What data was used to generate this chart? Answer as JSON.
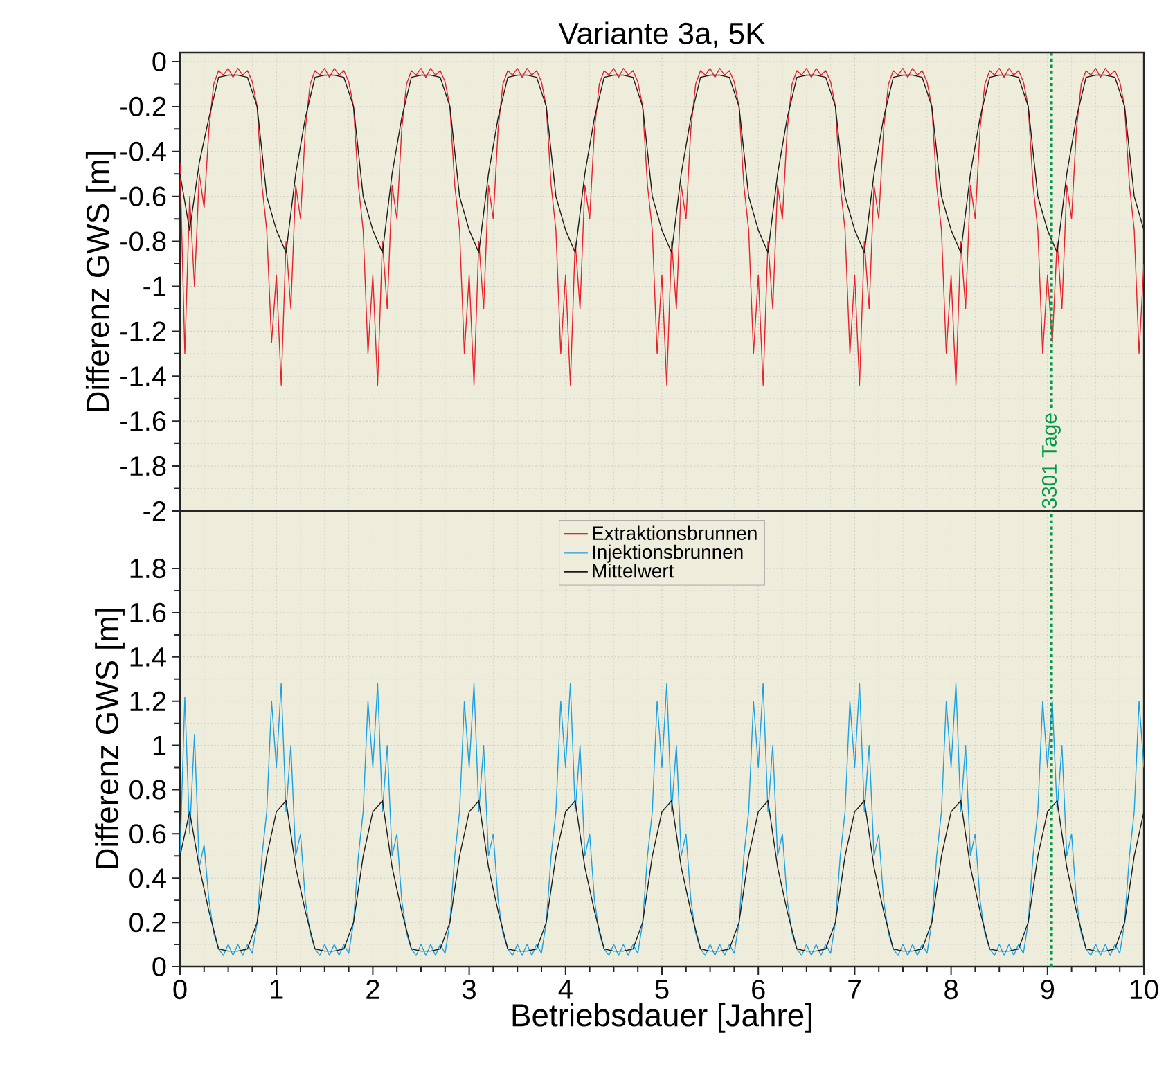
{
  "chart_data": [
    {
      "type": "line",
      "title": "Variante 3a, 5K",
      "ylabel": "Differenz GWS [m]",
      "tick_labels": "y",
      "grid": true,
      "xlim": [
        0,
        10
      ],
      "xticks": [
        0,
        1,
        2,
        3,
        4,
        5,
        6,
        7,
        8,
        9,
        10
      ],
      "ylim": [
        -2,
        0.04
      ],
      "yticks": [
        0,
        -0.2,
        -0.4,
        -0.6,
        -0.8,
        -1,
        -1.2,
        -1.4,
        -1.6,
        -1.8,
        -2
      ],
      "x": [
        0,
        0.05,
        0.1,
        0.15,
        0.2,
        0.25,
        0.3,
        0.35,
        0.4,
        0.45,
        0.5,
        0.55,
        0.6,
        0.65,
        0.7,
        0.75,
        0.8,
        0.85,
        0.9,
        0.95,
        1,
        1.05,
        1.1,
        1.15,
        1.2,
        1.25,
        1.3,
        1.35,
        1.4,
        1.45,
        1.5,
        1.55,
        1.6,
        1.65,
        1.7,
        1.75,
        1.8,
        1.85,
        1.9,
        1.95,
        2,
        2.05,
        2.1,
        2.15,
        2.2,
        2.25,
        2.3,
        2.35,
        2.4,
        2.45,
        2.5,
        2.55,
        2.6,
        2.65,
        2.7,
        2.75,
        2.8,
        2.85,
        2.9,
        2.95,
        3,
        3.05,
        3.1,
        3.15,
        3.2,
        3.25,
        3.3,
        3.35,
        3.4,
        3.45,
        3.5,
        3.55,
        3.6,
        3.65,
        3.7,
        3.75,
        3.8,
        3.85,
        3.9,
        3.95,
        4,
        4.05,
        4.1,
        4.15,
        4.2,
        4.25,
        4.3,
        4.35,
        4.4,
        4.45,
        4.5,
        4.55,
        4.6,
        4.65,
        4.7,
        4.75,
        4.8,
        4.85,
        4.9,
        4.95,
        5,
        5.05,
        5.1,
        5.15,
        5.2,
        5.25,
        5.3,
        5.35,
        5.4,
        5.45,
        5.5,
        5.55,
        5.6,
        5.65,
        5.7,
        5.75,
        5.8,
        5.85,
        5.9,
        5.95,
        6,
        6.05,
        6.1,
        6.15,
        6.2,
        6.25,
        6.3,
        6.35,
        6.4,
        6.45,
        6.5,
        6.55,
        6.6,
        6.65,
        6.7,
        6.75,
        6.8,
        6.85,
        6.9,
        6.95,
        7,
        7.05,
        7.1,
        7.15,
        7.2,
        7.25,
        7.3,
        7.35,
        7.4,
        7.45,
        7.5,
        7.55,
        7.6,
        7.65,
        7.7,
        7.75,
        7.8,
        7.85,
        7.9,
        7.95,
        8,
        8.05,
        8.1,
        8.15,
        8.2,
        8.25,
        8.3,
        8.35,
        8.4,
        8.45,
        8.5,
        8.55,
        8.6,
        8.65,
        8.7,
        8.75,
        8.8,
        8.85,
        8.9,
        8.95,
        9,
        9.05,
        9.1,
        9.15,
        9.2,
        9.25,
        9.3,
        9.35,
        9.4,
        9.45,
        9.5,
        9.55,
        9.6,
        9.65,
        9.7,
        9.75,
        9.8,
        9.85,
        9.9,
        9.95,
        10
      ],
      "series": [
        {
          "name": "Extraktionsbrunnen",
          "color": "#e8202a",
          "values": [
            -0.45,
            -1.3,
            -0.6,
            -1.0,
            -0.5,
            -0.65,
            -0.3,
            -0.1,
            -0.04,
            -0.06,
            -0.03,
            -0.07,
            -0.03,
            -0.06,
            -0.04,
            -0.09,
            -0.2,
            -0.55,
            -0.75,
            -1.25,
            -0.95,
            -1.44,
            -0.8,
            -1.1,
            -0.55,
            -0.7,
            -0.3,
            -0.1,
            -0.04,
            -0.06,
            -0.03,
            -0.07,
            -0.03,
            -0.06,
            -0.04,
            -0.09,
            -0.2,
            -0.55,
            -0.75,
            -1.3,
            -0.95,
            -1.44,
            -0.8,
            -1.1,
            -0.55,
            -0.7,
            -0.3,
            -0.1,
            -0.04,
            -0.06,
            -0.03,
            -0.07,
            -0.03,
            -0.06,
            -0.04,
            -0.09,
            -0.2,
            -0.55,
            -0.75,
            -1.3,
            -0.95,
            -1.44,
            -0.8,
            -1.1,
            -0.55,
            -0.7,
            -0.3,
            -0.1,
            -0.04,
            -0.06,
            -0.03,
            -0.07,
            -0.03,
            -0.06,
            -0.04,
            -0.09,
            -0.2,
            -0.55,
            -0.75,
            -1.3,
            -0.95,
            -1.44,
            -0.8,
            -1.1,
            -0.55,
            -0.7,
            -0.3,
            -0.1,
            -0.04,
            -0.06,
            -0.03,
            -0.07,
            -0.03,
            -0.06,
            -0.04,
            -0.09,
            -0.2,
            -0.55,
            -0.75,
            -1.3,
            -0.95,
            -1.44,
            -0.8,
            -1.1,
            -0.55,
            -0.7,
            -0.3,
            -0.1,
            -0.04,
            -0.06,
            -0.03,
            -0.07,
            -0.03,
            -0.06,
            -0.04,
            -0.09,
            -0.2,
            -0.55,
            -0.75,
            -1.3,
            -0.95,
            -1.44,
            -0.8,
            -1.1,
            -0.55,
            -0.7,
            -0.3,
            -0.1,
            -0.04,
            -0.06,
            -0.03,
            -0.07,
            -0.03,
            -0.06,
            -0.04,
            -0.09,
            -0.2,
            -0.55,
            -0.75,
            -1.3,
            -0.95,
            -1.44,
            -0.8,
            -1.1,
            -0.55,
            -0.7,
            -0.3,
            -0.1,
            -0.04,
            -0.06,
            -0.03,
            -0.07,
            -0.03,
            -0.06,
            -0.04,
            -0.09,
            -0.2,
            -0.55,
            -0.75,
            -1.3,
            -0.95,
            -1.44,
            -0.8,
            -1.1,
            -0.55,
            -0.7,
            -0.3,
            -0.1,
            -0.04,
            -0.06,
            -0.03,
            -0.07,
            -0.03,
            -0.06,
            -0.04,
            -0.09,
            -0.2,
            -0.55,
            -0.75,
            -1.3,
            -0.95,
            -1.25,
            -0.8,
            -1.1,
            -0.55,
            -0.7,
            -0.3,
            -0.1,
            -0.04,
            -0.06,
            -0.03,
            -0.07,
            -0.03,
            -0.06,
            -0.04,
            -0.09,
            -0.2,
            -0.55,
            -0.75,
            -1.3,
            -0.9
          ]
        },
        {
          "name": "Mittelwert",
          "color": "#1a1a1a",
          "x": [
            0,
            0.1,
            0.2,
            0.3,
            0.4,
            0.5,
            0.6,
            0.7,
            0.8,
            0.9,
            1,
            1.1,
            1.2,
            1.3,
            1.4,
            1.5,
            1.6,
            1.7,
            1.8,
            1.9,
            2,
            2.1,
            2.2,
            2.3,
            2.4,
            2.5,
            2.6,
            2.7,
            2.8,
            2.9,
            3,
            3.1,
            3.2,
            3.3,
            3.4,
            3.5,
            3.6,
            3.7,
            3.8,
            3.9,
            4,
            4.1,
            4.2,
            4.3,
            4.4,
            4.5,
            4.6,
            4.7,
            4.8,
            4.9,
            5,
            5.1,
            5.2,
            5.3,
            5.4,
            5.5,
            5.6,
            5.7,
            5.8,
            5.9,
            6,
            6.1,
            6.2,
            6.3,
            6.4,
            6.5,
            6.6,
            6.7,
            6.8,
            6.9,
            7,
            7.1,
            7.2,
            7.3,
            7.4,
            7.5,
            7.6,
            7.7,
            7.8,
            7.9,
            8,
            8.1,
            8.2,
            8.3,
            8.4,
            8.5,
            8.6,
            8.7,
            8.8,
            8.9,
            9,
            9.1,
            9.2,
            9.3,
            9.4,
            9.5,
            9.6,
            9.7,
            9.8,
            9.9,
            10
          ],
          "values": [
            -0.5,
            -0.75,
            -0.45,
            -0.25,
            -0.07,
            -0.06,
            -0.06,
            -0.07,
            -0.2,
            -0.6,
            -0.75,
            -0.85,
            -0.5,
            -0.25,
            -0.07,
            -0.06,
            -0.06,
            -0.07,
            -0.2,
            -0.6,
            -0.75,
            -0.85,
            -0.5,
            -0.25,
            -0.07,
            -0.06,
            -0.06,
            -0.07,
            -0.2,
            -0.6,
            -0.75,
            -0.85,
            -0.5,
            -0.25,
            -0.07,
            -0.06,
            -0.06,
            -0.07,
            -0.2,
            -0.6,
            -0.75,
            -0.85,
            -0.5,
            -0.25,
            -0.07,
            -0.06,
            -0.06,
            -0.07,
            -0.2,
            -0.6,
            -0.75,
            -0.85,
            -0.5,
            -0.25,
            -0.07,
            -0.06,
            -0.06,
            -0.07,
            -0.2,
            -0.6,
            -0.75,
            -0.85,
            -0.5,
            -0.25,
            -0.07,
            -0.06,
            -0.06,
            -0.07,
            -0.2,
            -0.6,
            -0.75,
            -0.85,
            -0.5,
            -0.25,
            -0.07,
            -0.06,
            -0.06,
            -0.07,
            -0.2,
            -0.6,
            -0.75,
            -0.85,
            -0.5,
            -0.25,
            -0.07,
            -0.06,
            -0.06,
            -0.07,
            -0.2,
            -0.6,
            -0.75,
            -0.85,
            -0.5,
            -0.25,
            -0.07,
            -0.06,
            -0.06,
            -0.07,
            -0.2,
            -0.6,
            -0.75
          ]
        }
      ],
      "ref_lines": [
        {
          "axis": "x",
          "value": 9.04,
          "label": "3301 Tage",
          "color": "#00994c",
          "line_style": "dotted"
        }
      ]
    },
    {
      "type": "line",
      "ylabel": "Differenz GWS [m]",
      "xlabel": "Betriebsdauer [Jahre]",
      "grid": true,
      "legend": "top",
      "xlim": [
        0,
        10
      ],
      "xticks": [
        0,
        1,
        2,
        3,
        4,
        5,
        6,
        7,
        8,
        9,
        10
      ],
      "ylim": [
        0,
        2.06
      ],
      "yticks": [
        0,
        0.2,
        0.4,
        0.6,
        0.8,
        1,
        1.2,
        1.4,
        1.6,
        1.8
      ],
      "x": [
        0,
        0.05,
        0.1,
        0.15,
        0.2,
        0.25,
        0.3,
        0.35,
        0.4,
        0.45,
        0.5,
        0.55,
        0.6,
        0.65,
        0.7,
        0.75,
        0.8,
        0.85,
        0.9,
        0.95,
        1,
        1.05,
        1.1,
        1.15,
        1.2,
        1.25,
        1.3,
        1.35,
        1.4,
        1.45,
        1.5,
        1.55,
        1.6,
        1.65,
        1.7,
        1.75,
        1.8,
        1.85,
        1.9,
        1.95,
        2,
        2.05,
        2.1,
        2.15,
        2.2,
        2.25,
        2.3,
        2.35,
        2.4,
        2.45,
        2.5,
        2.55,
        2.6,
        2.65,
        2.7,
        2.75,
        2.8,
        2.85,
        2.9,
        2.95,
        3,
        3.05,
        3.1,
        3.15,
        3.2,
        3.25,
        3.3,
        3.35,
        3.4,
        3.45,
        3.5,
        3.55,
        3.6,
        3.65,
        3.7,
        3.75,
        3.8,
        3.85,
        3.9,
        3.95,
        4,
        4.05,
        4.1,
        4.15,
        4.2,
        4.25,
        4.3,
        4.35,
        4.4,
        4.45,
        4.5,
        4.55,
        4.6,
        4.65,
        4.7,
        4.75,
        4.8,
        4.85,
        4.9,
        4.95,
        5,
        5.05,
        5.1,
        5.15,
        5.2,
        5.25,
        5.3,
        5.35,
        5.4,
        5.45,
        5.5,
        5.55,
        5.6,
        5.65,
        5.7,
        5.75,
        5.8,
        5.85,
        5.9,
        5.95,
        6,
        6.05,
        6.1,
        6.15,
        6.2,
        6.25,
        6.3,
        6.35,
        6.4,
        6.45,
        6.5,
        6.55,
        6.6,
        6.65,
        6.7,
        6.75,
        6.8,
        6.85,
        6.9,
        6.95,
        7,
        7.05,
        7.1,
        7.15,
        7.2,
        7.25,
        7.3,
        7.35,
        7.4,
        7.45,
        7.5,
        7.55,
        7.6,
        7.65,
        7.7,
        7.75,
        7.8,
        7.85,
        7.9,
        7.95,
        8,
        8.05,
        8.1,
        8.15,
        8.2,
        8.25,
        8.3,
        8.35,
        8.4,
        8.45,
        8.5,
        8.55,
        8.6,
        8.65,
        8.7,
        8.75,
        8.8,
        8.85,
        8.9,
        8.95,
        9,
        9.05,
        9.1,
        9.15,
        9.2,
        9.25,
        9.3,
        9.35,
        9.4,
        9.45,
        9.5,
        9.55,
        9.6,
        9.65,
        9.7,
        9.75,
        9.8,
        9.85,
        9.9,
        9.95,
        10
      ],
      "series": [
        {
          "name": "Injektionsbrunnen",
          "color": "#1ba1e2",
          "values": [
            0.5,
            1.22,
            0.6,
            1.05,
            0.45,
            0.55,
            0.3,
            0.15,
            0.08,
            0.05,
            0.1,
            0.05,
            0.1,
            0.05,
            0.1,
            0.06,
            0.2,
            0.5,
            0.7,
            1.2,
            0.9,
            1.28,
            0.7,
            1.0,
            0.5,
            0.6,
            0.3,
            0.15,
            0.08,
            0.05,
            0.1,
            0.05,
            0.1,
            0.05,
            0.1,
            0.06,
            0.2,
            0.5,
            0.7,
            1.2,
            0.9,
            1.28,
            0.7,
            1.0,
            0.5,
            0.6,
            0.3,
            0.15,
            0.08,
            0.05,
            0.1,
            0.05,
            0.1,
            0.05,
            0.1,
            0.06,
            0.2,
            0.5,
            0.7,
            1.2,
            0.9,
            1.28,
            0.7,
            1.0,
            0.5,
            0.6,
            0.3,
            0.15,
            0.08,
            0.05,
            0.1,
            0.05,
            0.1,
            0.05,
            0.1,
            0.06,
            0.2,
            0.5,
            0.7,
            1.2,
            0.9,
            1.28,
            0.7,
            1.0,
            0.5,
            0.6,
            0.3,
            0.15,
            0.08,
            0.05,
            0.1,
            0.05,
            0.1,
            0.05,
            0.1,
            0.06,
            0.2,
            0.5,
            0.7,
            1.2,
            0.9,
            1.28,
            0.7,
            1.0,
            0.5,
            0.6,
            0.3,
            0.15,
            0.08,
            0.05,
            0.1,
            0.05,
            0.1,
            0.05,
            0.1,
            0.06,
            0.2,
            0.5,
            0.7,
            1.2,
            0.9,
            1.28,
            0.7,
            1.0,
            0.5,
            0.6,
            0.3,
            0.15,
            0.08,
            0.05,
            0.1,
            0.05,
            0.1,
            0.05,
            0.1,
            0.06,
            0.2,
            0.5,
            0.7,
            1.2,
            0.9,
            1.28,
            0.7,
            1.0,
            0.5,
            0.6,
            0.3,
            0.15,
            0.08,
            0.05,
            0.1,
            0.05,
            0.1,
            0.05,
            0.1,
            0.06,
            0.2,
            0.5,
            0.7,
            1.2,
            0.9,
            1.28,
            0.7,
            1.0,
            0.5,
            0.6,
            0.3,
            0.15,
            0.08,
            0.05,
            0.1,
            0.05,
            0.1,
            0.05,
            0.1,
            0.06,
            0.2,
            0.5,
            0.7,
            1.2,
            0.9,
            1.2,
            0.7,
            1.0,
            0.5,
            0.6,
            0.3,
            0.15,
            0.08,
            0.05,
            0.1,
            0.05,
            0.1,
            0.05,
            0.1,
            0.06,
            0.2,
            0.5,
            0.7,
            1.2,
            0.9
          ]
        },
        {
          "name": "Mittelwert",
          "color": "#1a1a1a",
          "x": [
            0,
            0.1,
            0.2,
            0.3,
            0.4,
            0.5,
            0.6,
            0.7,
            0.8,
            0.9,
            1,
            1.1,
            1.2,
            1.3,
            1.4,
            1.5,
            1.6,
            1.7,
            1.8,
            1.9,
            2,
            2.1,
            2.2,
            2.3,
            2.4,
            2.5,
            2.6,
            2.7,
            2.8,
            2.9,
            3,
            3.1,
            3.2,
            3.3,
            3.4,
            3.5,
            3.6,
            3.7,
            3.8,
            3.9,
            4,
            4.1,
            4.2,
            4.3,
            4.4,
            4.5,
            4.6,
            4.7,
            4.8,
            4.9,
            5,
            5.1,
            5.2,
            5.3,
            5.4,
            5.5,
            5.6,
            5.7,
            5.8,
            5.9,
            6,
            6.1,
            6.2,
            6.3,
            6.4,
            6.5,
            6.6,
            6.7,
            6.8,
            6.9,
            7,
            7.1,
            7.2,
            7.3,
            7.4,
            7.5,
            7.6,
            7.7,
            7.8,
            7.9,
            8,
            8.1,
            8.2,
            8.3,
            8.4,
            8.5,
            8.6,
            8.7,
            8.8,
            8.9,
            9,
            9.1,
            9.2,
            9.3,
            9.4,
            9.5,
            9.6,
            9.7,
            9.8,
            9.9,
            10
          ],
          "values": [
            0.5,
            0.7,
            0.45,
            0.25,
            0.08,
            0.07,
            0.07,
            0.08,
            0.2,
            0.5,
            0.7,
            0.75,
            0.45,
            0.25,
            0.08,
            0.07,
            0.07,
            0.08,
            0.2,
            0.5,
            0.7,
            0.75,
            0.45,
            0.25,
            0.08,
            0.07,
            0.07,
            0.08,
            0.2,
            0.5,
            0.7,
            0.75,
            0.45,
            0.25,
            0.08,
            0.07,
            0.07,
            0.08,
            0.2,
            0.5,
            0.7,
            0.75,
            0.45,
            0.25,
            0.08,
            0.07,
            0.07,
            0.08,
            0.2,
            0.5,
            0.7,
            0.75,
            0.45,
            0.25,
            0.08,
            0.07,
            0.07,
            0.08,
            0.2,
            0.5,
            0.7,
            0.75,
            0.45,
            0.25,
            0.08,
            0.07,
            0.07,
            0.08,
            0.2,
            0.5,
            0.7,
            0.75,
            0.45,
            0.25,
            0.08,
            0.07,
            0.07,
            0.08,
            0.2,
            0.5,
            0.7,
            0.75,
            0.45,
            0.25,
            0.08,
            0.07,
            0.07,
            0.08,
            0.2,
            0.5,
            0.7,
            0.75,
            0.45,
            0.25,
            0.08,
            0.07,
            0.07,
            0.08,
            0.2,
            0.5,
            0.7
          ]
        }
      ],
      "ref_lines": [
        {
          "axis": "x",
          "value": 9.04,
          "color": "#00994c",
          "line_style": "dotted"
        }
      ]
    }
  ]
}
